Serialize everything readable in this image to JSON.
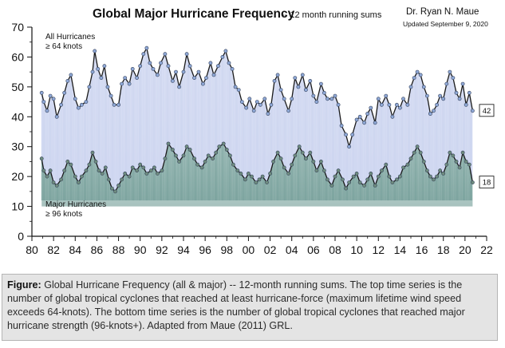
{
  "chart_data": {
    "type": "line",
    "title": "Global Major Hurricane Frequency",
    "subtitle": "-- 12 month running sums",
    "author": "Dr. Ryan N. Maue",
    "updated": "Updated September 9, 2020",
    "ylim": [
      0,
      70
    ],
    "xlim": [
      1980,
      2022
    ],
    "yticks": [
      "0",
      "10",
      "20",
      "30",
      "40",
      "50",
      "60",
      "70"
    ],
    "xticks": [
      "80",
      "82",
      "84",
      "86",
      "88",
      "90",
      "92",
      "94",
      "96",
      "98",
      "00",
      "02",
      "04",
      "06",
      "08",
      "10",
      "12",
      "14",
      "16",
      "18",
      "20",
      "22"
    ],
    "grid": false,
    "series": [
      {
        "name": "All Hurricanes ≥ 64 knots",
        "label_line1": "All Hurricanes",
        "label_line2": "≥ 64 knots",
        "color": "#1a1a1a",
        "marker": "#8fa8d6",
        "fill": "#dfe4f6",
        "end_label": "42",
        "points": [
          [
            1980.9,
            48
          ],
          [
            1981.1,
            45
          ],
          [
            1981.4,
            42
          ],
          [
            1981.7,
            47
          ],
          [
            1982.0,
            46
          ],
          [
            1982.3,
            40
          ],
          [
            1982.7,
            44
          ],
          [
            1983.0,
            48
          ],
          [
            1983.3,
            52
          ],
          [
            1983.6,
            54
          ],
          [
            1984.0,
            46
          ],
          [
            1984.3,
            43
          ],
          [
            1984.6,
            44
          ],
          [
            1985.0,
            45
          ],
          [
            1985.3,
            50
          ],
          [
            1985.6,
            55
          ],
          [
            1985.8,
            62
          ],
          [
            1986.1,
            56
          ],
          [
            1986.4,
            53
          ],
          [
            1986.7,
            57
          ],
          [
            1987.0,
            50
          ],
          [
            1987.3,
            47
          ],
          [
            1987.6,
            44
          ],
          [
            1988.0,
            44
          ],
          [
            1988.3,
            51
          ],
          [
            1988.6,
            53
          ],
          [
            1989.0,
            51
          ],
          [
            1989.3,
            56
          ],
          [
            1989.7,
            53
          ],
          [
            1990.0,
            57
          ],
          [
            1990.3,
            61
          ],
          [
            1990.6,
            63
          ],
          [
            1990.9,
            58
          ],
          [
            1991.2,
            56
          ],
          [
            1991.6,
            54
          ],
          [
            1991.9,
            58
          ],
          [
            1992.3,
            61
          ],
          [
            1992.6,
            57
          ],
          [
            1993.0,
            52
          ],
          [
            1993.3,
            55
          ],
          [
            1993.6,
            50
          ],
          [
            1994.0,
            55
          ],
          [
            1994.3,
            61
          ],
          [
            1994.6,
            57
          ],
          [
            1995.0,
            53
          ],
          [
            1995.4,
            55
          ],
          [
            1995.8,
            51
          ],
          [
            1996.1,
            53
          ],
          [
            1996.5,
            58
          ],
          [
            1996.8,
            54
          ],
          [
            1997.2,
            57
          ],
          [
            1997.6,
            60
          ],
          [
            1997.9,
            62
          ],
          [
            1998.2,
            58
          ],
          [
            1998.5,
            56
          ],
          [
            1998.8,
            50
          ],
          [
            1999.1,
            49
          ],
          [
            1999.4,
            45
          ],
          [
            1999.8,
            43
          ],
          [
            2000.1,
            46
          ],
          [
            2000.5,
            42
          ],
          [
            2000.8,
            45
          ],
          [
            2001.1,
            44
          ],
          [
            2001.5,
            46
          ],
          [
            2001.8,
            41
          ],
          [
            2002.1,
            44
          ],
          [
            2002.4,
            52
          ],
          [
            2002.7,
            54
          ],
          [
            2003.0,
            49
          ],
          [
            2003.3,
            46
          ],
          [
            2003.7,
            42
          ],
          [
            2004.0,
            46
          ],
          [
            2004.3,
            53
          ],
          [
            2004.6,
            50
          ],
          [
            2005.0,
            54
          ],
          [
            2005.3,
            49
          ],
          [
            2005.7,
            52
          ],
          [
            2006.0,
            47
          ],
          [
            2006.3,
            45
          ],
          [
            2006.7,
            51
          ],
          [
            2007.0,
            48
          ],
          [
            2007.3,
            46
          ],
          [
            2007.7,
            46
          ],
          [
            2008.0,
            47
          ],
          [
            2008.3,
            44
          ],
          [
            2008.6,
            37
          ],
          [
            2009.0,
            34
          ],
          [
            2009.3,
            30
          ],
          [
            2009.6,
            34
          ],
          [
            2010.0,
            39
          ],
          [
            2010.3,
            40
          ],
          [
            2010.7,
            38
          ],
          [
            2011.0,
            41
          ],
          [
            2011.3,
            43
          ],
          [
            2011.7,
            38
          ],
          [
            2012.0,
            46
          ],
          [
            2012.3,
            44
          ],
          [
            2012.7,
            47
          ],
          [
            2013.0,
            44
          ],
          [
            2013.3,
            40
          ],
          [
            2013.7,
            44
          ],
          [
            2014.0,
            43
          ],
          [
            2014.3,
            46
          ],
          [
            2014.7,
            44
          ],
          [
            2015.0,
            50
          ],
          [
            2015.3,
            53
          ],
          [
            2015.6,
            55
          ],
          [
            2015.9,
            54
          ],
          [
            2016.2,
            50
          ],
          [
            2016.5,
            47
          ],
          [
            2016.8,
            41
          ],
          [
            2017.1,
            42
          ],
          [
            2017.4,
            44
          ],
          [
            2017.7,
            47
          ],
          [
            2018.0,
            46
          ],
          [
            2018.3,
            51
          ],
          [
            2018.6,
            55
          ],
          [
            2018.9,
            53
          ],
          [
            2019.2,
            48
          ],
          [
            2019.5,
            46
          ],
          [
            2019.8,
            51
          ],
          [
            2020.1,
            44
          ],
          [
            2020.4,
            48
          ],
          [
            2020.7,
            42
          ]
        ]
      },
      {
        "name": "Major Hurricanes ≥ 96 knots",
        "label_line1": "Major Hurricanes",
        "label_line2": "≥ 96 knots",
        "color": "#1a1a1a",
        "marker": "#6f8c7e",
        "fill": "#6f9c94",
        "end_label": "18",
        "points": [
          [
            1980.9,
            26
          ],
          [
            1981.1,
            22
          ],
          [
            1981.4,
            20
          ],
          [
            1981.7,
            22
          ],
          [
            1982.0,
            18
          ],
          [
            1982.3,
            17
          ],
          [
            1982.7,
            19
          ],
          [
            1983.0,
            22
          ],
          [
            1983.3,
            25
          ],
          [
            1983.6,
            24
          ],
          [
            1984.0,
            20
          ],
          [
            1984.3,
            18
          ],
          [
            1984.6,
            20
          ],
          [
            1985.0,
            22
          ],
          [
            1985.3,
            24
          ],
          [
            1985.6,
            28
          ],
          [
            1985.9,
            25
          ],
          [
            1986.2,
            22
          ],
          [
            1986.5,
            21
          ],
          [
            1986.8,
            23
          ],
          [
            1987.1,
            19
          ],
          [
            1987.4,
            16
          ],
          [
            1987.7,
            15
          ],
          [
            1988.0,
            17
          ],
          [
            1988.3,
            19
          ],
          [
            1988.6,
            21
          ],
          [
            1989.0,
            20
          ],
          [
            1989.3,
            23
          ],
          [
            1989.7,
            22
          ],
          [
            1990.0,
            24
          ],
          [
            1990.3,
            23
          ],
          [
            1990.6,
            21
          ],
          [
            1991.0,
            22
          ],
          [
            1991.3,
            23
          ],
          [
            1991.6,
            21
          ],
          [
            1992.0,
            22
          ],
          [
            1992.3,
            26
          ],
          [
            1992.6,
            31
          ],
          [
            1993.0,
            29
          ],
          [
            1993.3,
            27
          ],
          [
            1993.6,
            25
          ],
          [
            1994.0,
            27
          ],
          [
            1994.3,
            30
          ],
          [
            1994.6,
            29
          ],
          [
            1995.0,
            26
          ],
          [
            1995.3,
            24
          ],
          [
            1995.7,
            23
          ],
          [
            1996.0,
            25
          ],
          [
            1996.3,
            27
          ],
          [
            1996.7,
            26
          ],
          [
            1997.0,
            28
          ],
          [
            1997.3,
            30
          ],
          [
            1997.7,
            31
          ],
          [
            1998.0,
            29
          ],
          [
            1998.3,
            27
          ],
          [
            1998.6,
            24
          ],
          [
            1999.0,
            22
          ],
          [
            1999.3,
            21
          ],
          [
            1999.7,
            19
          ],
          [
            2000.0,
            21
          ],
          [
            2000.3,
            20
          ],
          [
            2000.7,
            18
          ],
          [
            2001.0,
            19
          ],
          [
            2001.3,
            20
          ],
          [
            2001.7,
            18
          ],
          [
            2002.0,
            21
          ],
          [
            2002.3,
            25
          ],
          [
            2002.7,
            28
          ],
          [
            2003.0,
            26
          ],
          [
            2003.3,
            23
          ],
          [
            2003.7,
            21
          ],
          [
            2004.0,
            24
          ],
          [
            2004.3,
            27
          ],
          [
            2004.7,
            30
          ],
          [
            2005.0,
            28
          ],
          [
            2005.3,
            26
          ],
          [
            2005.7,
            28
          ],
          [
            2006.0,
            25
          ],
          [
            2006.3,
            22
          ],
          [
            2006.7,
            25
          ],
          [
            2007.0,
            22
          ],
          [
            2007.3,
            19
          ],
          [
            2007.7,
            17
          ],
          [
            2008.0,
            20
          ],
          [
            2008.3,
            22
          ],
          [
            2008.7,
            19
          ],
          [
            2009.0,
            16
          ],
          [
            2009.3,
            18
          ],
          [
            2009.7,
            20
          ],
          [
            2010.0,
            21
          ],
          [
            2010.3,
            18
          ],
          [
            2010.7,
            17
          ],
          [
            2011.0,
            19
          ],
          [
            2011.3,
            21
          ],
          [
            2011.7,
            17
          ],
          [
            2012.0,
            20
          ],
          [
            2012.3,
            22
          ],
          [
            2012.7,
            24
          ],
          [
            2013.0,
            20
          ],
          [
            2013.3,
            18
          ],
          [
            2013.7,
            19
          ],
          [
            2014.0,
            20
          ],
          [
            2014.3,
            23
          ],
          [
            2014.7,
            24
          ],
          [
            2015.0,
            26
          ],
          [
            2015.3,
            28
          ],
          [
            2015.6,
            30
          ],
          [
            2015.9,
            28
          ],
          [
            2016.2,
            25
          ],
          [
            2016.5,
            22
          ],
          [
            2016.8,
            20
          ],
          [
            2017.1,
            19
          ],
          [
            2017.4,
            20
          ],
          [
            2017.7,
            22
          ],
          [
            2018.0,
            21
          ],
          [
            2018.3,
            24
          ],
          [
            2018.6,
            28
          ],
          [
            2018.9,
            27
          ],
          [
            2019.2,
            25
          ],
          [
            2019.5,
            23
          ],
          [
            2019.8,
            28
          ],
          [
            2020.1,
            25
          ],
          [
            2020.4,
            24
          ],
          [
            2020.7,
            18
          ]
        ]
      }
    ]
  },
  "caption": {
    "label": "Figure:",
    "text": "Global Hurricane Frequency (all & major) -- 12-month running sums. The top time series is the number of global tropical cyclones that reached at least hurricane-force (maximum lifetime wind speed exceeds 64-knots). The bottom time series is the number of global tropical cyclones that reached major hurricane strength (96-knots+). Adapted from Maue (2011) GRL."
  }
}
